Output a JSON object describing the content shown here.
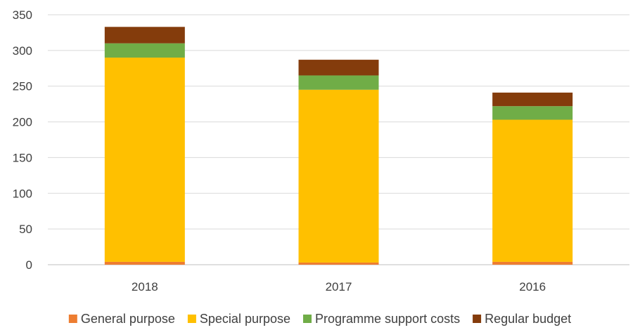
{
  "chart_data": {
    "type": "bar",
    "stacked": true,
    "categories": [
      "2018",
      "2017",
      "2016"
    ],
    "series": [
      {
        "name": "General purpose",
        "color": "#ED7D31",
        "values": [
          4,
          3,
          4
        ]
      },
      {
        "name": "Special purpose",
        "color": "#FFC000",
        "values": [
          286,
          242,
          199
        ]
      },
      {
        "name": "Programme support costs",
        "color": "#70AD47",
        "values": [
          20,
          20,
          19
        ]
      },
      {
        "name": "Regular budget",
        "color": "#843C0C",
        "values": [
          23,
          22,
          19
        ]
      }
    ],
    "ylim": [
      0,
      350
    ],
    "yticks": [
      0,
      50,
      100,
      150,
      200,
      250,
      300,
      350
    ],
    "grid": true,
    "legend_position": "bottom",
    "title": "",
    "xlabel": "",
    "ylabel": ""
  }
}
